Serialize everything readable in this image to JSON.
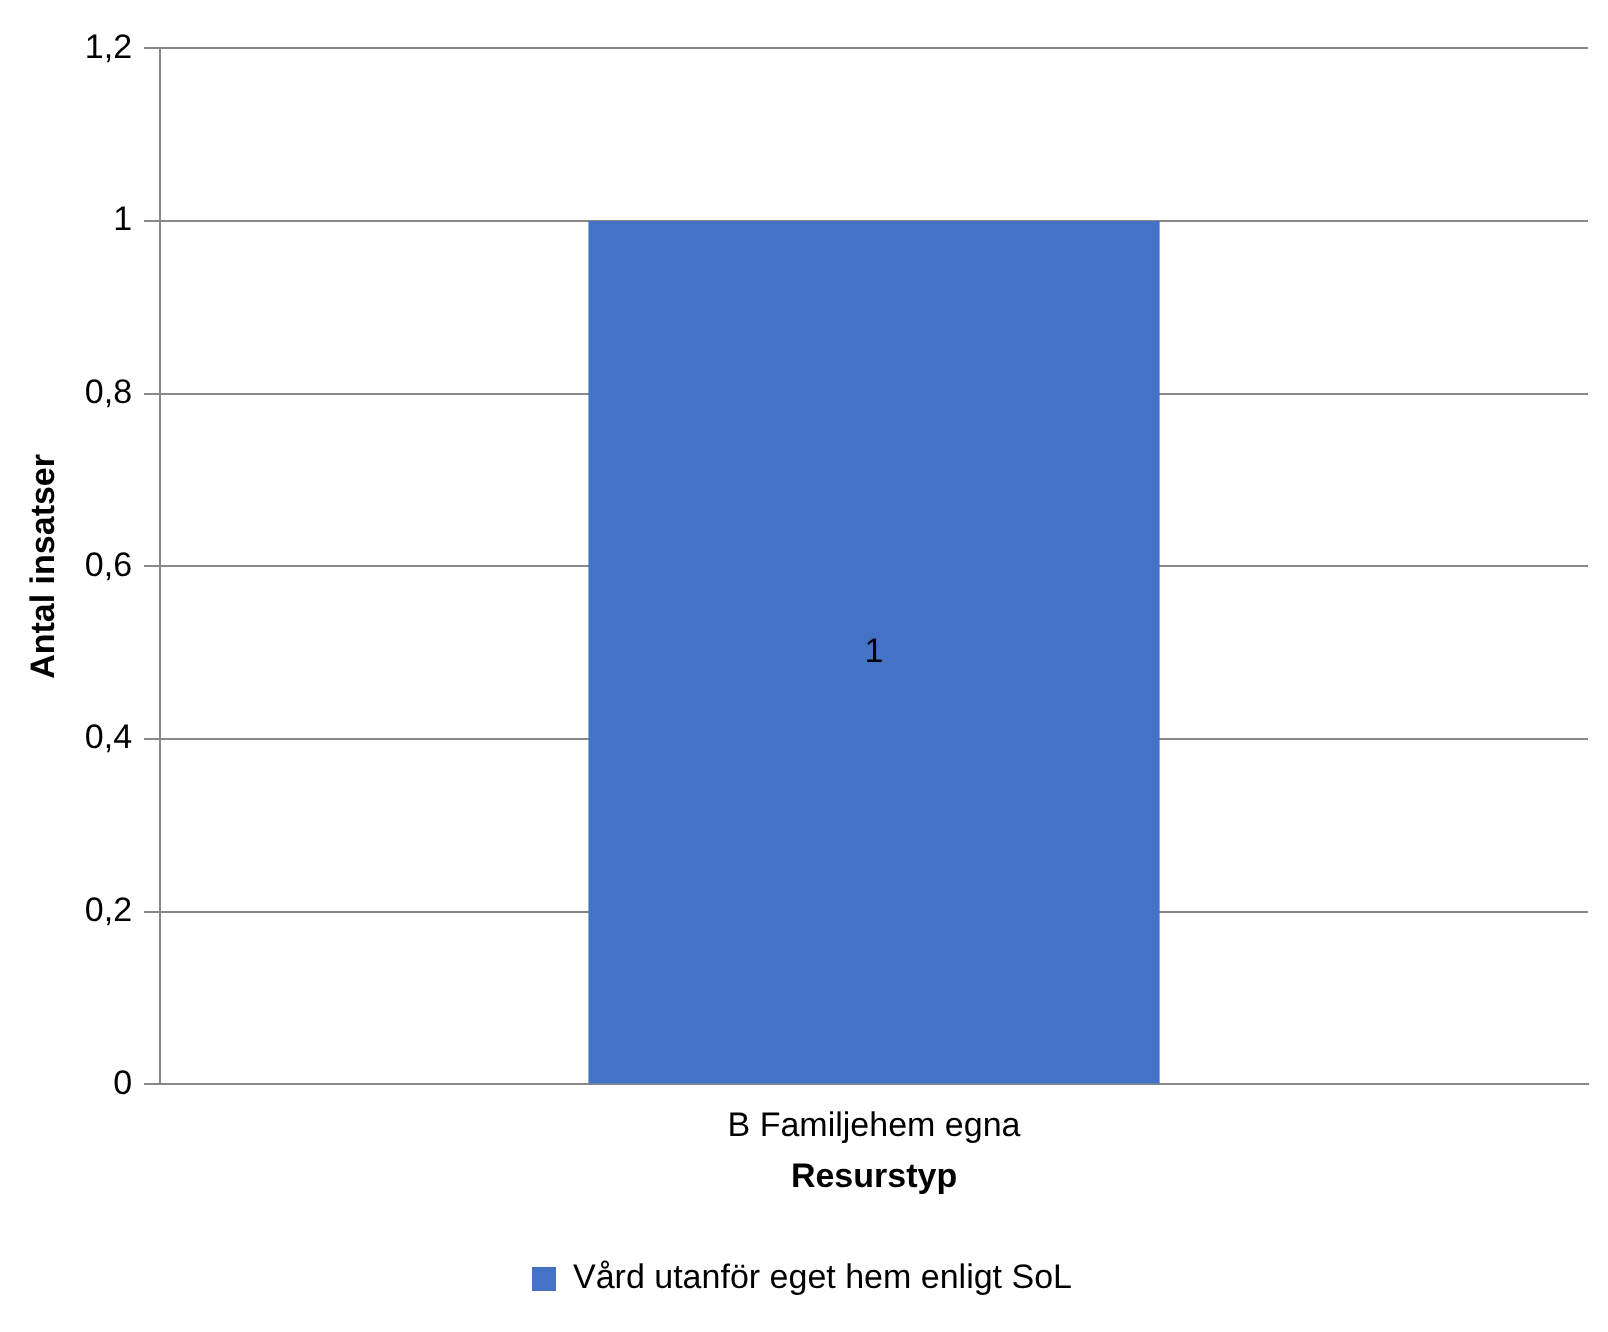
{
  "chart_data": {
    "type": "bar",
    "categories": [
      "B Familjehem egna"
    ],
    "series": [
      {
        "name": "Vård utanför eget hem enligt SoL",
        "color": "#4472c4",
        "values": [
          1
        ]
      }
    ],
    "xlabel": "Resurstyp",
    "ylabel": "Antal insatser",
    "ylim": [
      0,
      1.2
    ],
    "yticks": [
      0,
      {
        "value": 0.2,
        "label": "0,2"
      },
      {
        "value": 0.4,
        "label": "0,4"
      },
      {
        "value": 0.6,
        "label": "0,6"
      },
      {
        "value": 0.8,
        "label": "0,8"
      },
      1,
      {
        "value": 1.2,
        "label": "1,2"
      }
    ],
    "grid": "y",
    "legend": "bottom",
    "data_labels": true
  }
}
